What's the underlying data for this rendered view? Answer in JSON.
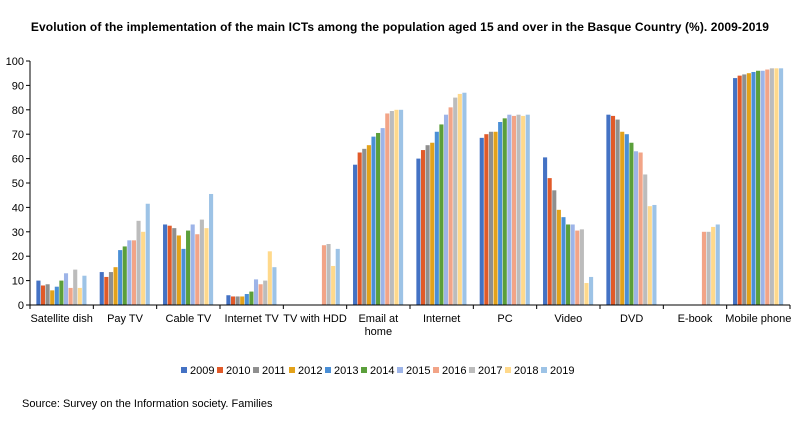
{
  "title": "Evolution  of the implementation  of the main ICTs among the population  aged 15 and over in the Basque Country (%). 2009-2019",
  "source": "Source: Survey on the Information society. Families",
  "colors": [
    "#4472c4",
    "#e15a29",
    "#8f8f8f",
    "#e3a21a",
    "#4a8fd6",
    "#5b9f3b",
    "#9db4e8",
    "#f2a487",
    "#bcbcbc",
    "#ffd98b",
    "#9dc3e6"
  ],
  "chart_data": {
    "type": "bar",
    "title": "Evolution  of the implementation  of the main ICTs among the population  aged 15 and over in the Basque Country (%). 2009-2019",
    "xlabel": "",
    "ylabel": "",
    "ylim": [
      0,
      100
    ],
    "yticks": [
      0,
      10,
      20,
      30,
      40,
      50,
      60,
      70,
      80,
      90,
      100
    ],
    "grid": false,
    "legend_position": "bottom",
    "categories": [
      {
        "lines": [
          "Satellite dish"
        ]
      },
      {
        "lines": [
          "Pay TV"
        ]
      },
      {
        "lines": [
          "Cable TV"
        ]
      },
      {
        "lines": [
          "Internet TV"
        ]
      },
      {
        "lines": [
          "TV with HDD"
        ]
      },
      {
        "lines": [
          "Email at",
          "home"
        ]
      },
      {
        "lines": [
          "Internet"
        ]
      },
      {
        "lines": [
          "PC"
        ]
      },
      {
        "lines": [
          "Video"
        ]
      },
      {
        "lines": [
          "DVD"
        ]
      },
      {
        "lines": [
          "E-book"
        ]
      },
      {
        "lines": [
          "Mobile phone"
        ]
      }
    ],
    "series": [
      {
        "name": "2009",
        "values": [
          10,
          13.5,
          33,
          4,
          null,
          57.5,
          60,
          68.5,
          60.5,
          78,
          null,
          93
        ]
      },
      {
        "name": "2010",
        "values": [
          8,
          11.5,
          32.5,
          3.5,
          null,
          62.5,
          63.5,
          70,
          52,
          77.5,
          null,
          94
        ]
      },
      {
        "name": "2011",
        "values": [
          8.5,
          13.5,
          31.5,
          3.5,
          null,
          64,
          65.5,
          71,
          47,
          76,
          null,
          94.5
        ]
      },
      {
        "name": "2012",
        "values": [
          6,
          15.5,
          28.5,
          3.5,
          null,
          65.5,
          66.5,
          71,
          39,
          71,
          null,
          95
        ]
      },
      {
        "name": "2013",
        "values": [
          7.5,
          22.5,
          23,
          4.5,
          null,
          69,
          71,
          75,
          36,
          70,
          null,
          95.5
        ]
      },
      {
        "name": "2014",
        "values": [
          10,
          24,
          30.5,
          5.5,
          null,
          70.5,
          74,
          76.5,
          33,
          66.5,
          null,
          96
        ]
      },
      {
        "name": "2015",
        "values": [
          13,
          26.5,
          33,
          10.5,
          null,
          72.5,
          78,
          78,
          33,
          63,
          null,
          96
        ]
      },
      {
        "name": "2016",
        "values": [
          7,
          26.5,
          29,
          8.5,
          24.5,
          78.5,
          81,
          77.5,
          30.5,
          62.5,
          30,
          96.5
        ]
      },
      {
        "name": "2017",
        "values": [
          14.5,
          34.5,
          35,
          10,
          25,
          79.5,
          85,
          78,
          31,
          53.5,
          30,
          97
        ]
      },
      {
        "name": "2018",
        "values": [
          7,
          30,
          31.5,
          22,
          16,
          80,
          86.5,
          77.5,
          9,
          40.5,
          32,
          97
        ]
      },
      {
        "name": "2019",
        "values": [
          12,
          41.5,
          45.5,
          15.5,
          23,
          80,
          87,
          78,
          11.5,
          41,
          33,
          97
        ]
      }
    ]
  }
}
